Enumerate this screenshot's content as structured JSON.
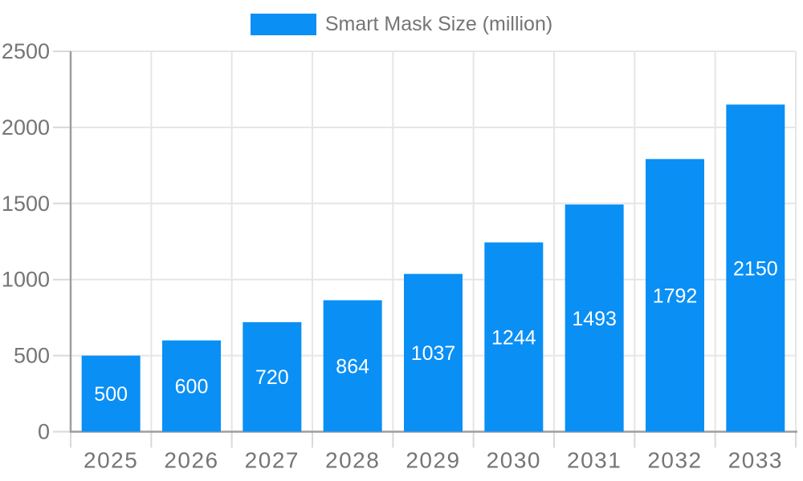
{
  "chart": {
    "colors": {
      "bar": "#0a8ff5",
      "grid": "#e6e6e6",
      "tick": "#d9d9d9",
      "axis": "#9e9e9e",
      "text": "#757575",
      "bar_label": "#ffffff",
      "bg": "#ffffff"
    }
  },
  "chart_data": {
    "type": "bar",
    "title": "Smart Mask Size (million)",
    "series_name": "Smart Mask Size (million)",
    "categories": [
      "2025",
      "2026",
      "2027",
      "2028",
      "2029",
      "2030",
      "2031",
      "2032",
      "2033"
    ],
    "values": [
      500,
      600,
      720,
      864,
      1037,
      1244,
      1493,
      1792,
      2150
    ],
    "xlabel": "",
    "ylabel": "",
    "ylim": [
      0,
      2500
    ],
    "yticks": [
      0,
      500,
      1000,
      1500,
      2000,
      2500
    ],
    "grid": true,
    "legend_position": "top-center",
    "bar_value_labels": "inside-center"
  }
}
